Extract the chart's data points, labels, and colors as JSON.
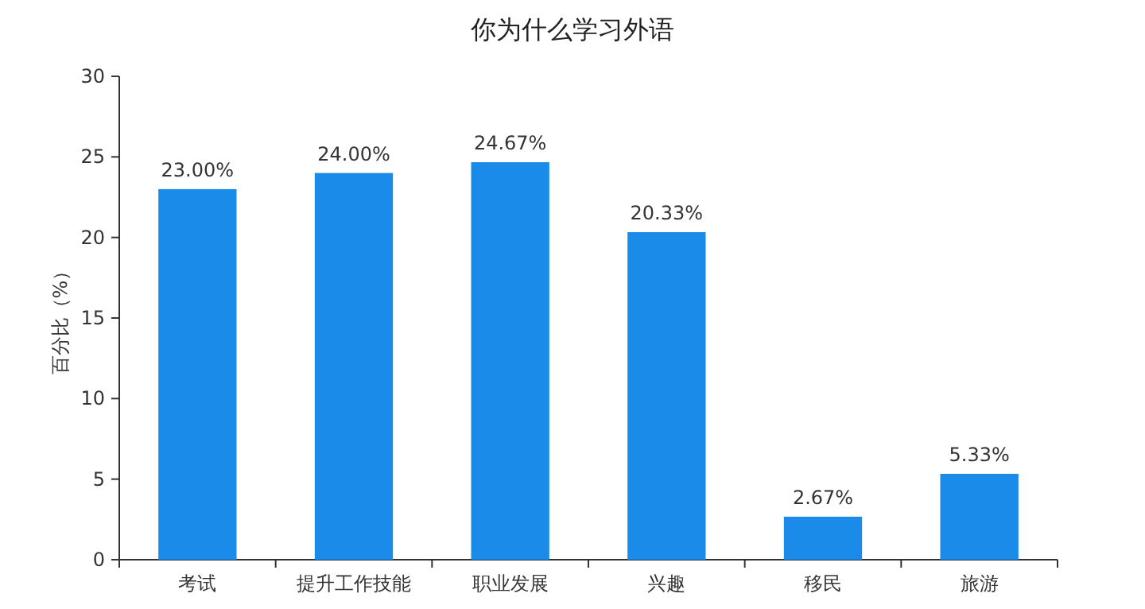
{
  "chart_data": {
    "type": "bar",
    "title": "你为什么学习外语",
    "ylabel": "百分比（%）",
    "categories": [
      "考试",
      "提升工作技能",
      "职业发展",
      "兴趣",
      "移民",
      "旅游"
    ],
    "values": [
      23.0,
      24.0,
      24.67,
      20.33,
      2.67,
      5.33
    ],
    "value_labels": [
      "23.00%",
      "24.00%",
      "24.67%",
      "20.33%",
      "2.67%",
      "5.33%"
    ],
    "color": "#1a8be8",
    "ylim": [
      0,
      30
    ],
    "yticks": [
      0,
      5,
      10,
      15,
      20,
      25,
      30
    ],
    "grid": false
  }
}
